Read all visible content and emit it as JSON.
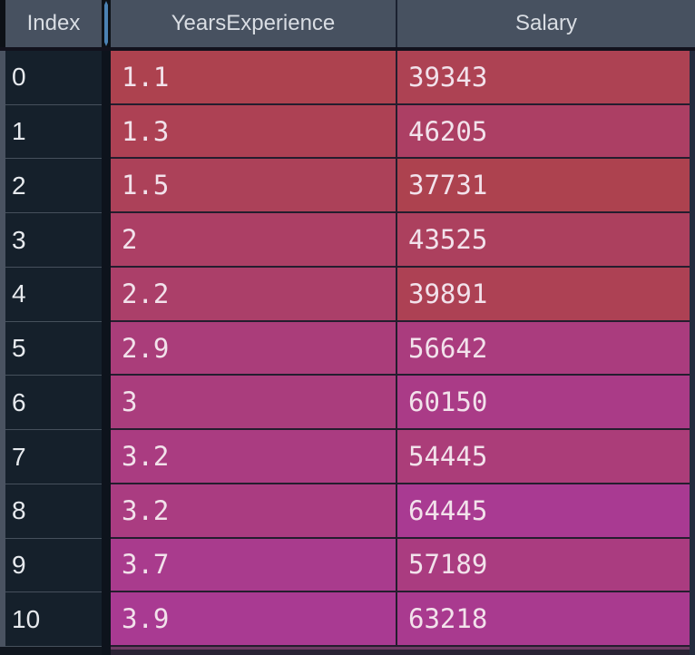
{
  "header": {
    "index_label": "Index",
    "columns": [
      {
        "label": "YearsExperience"
      },
      {
        "label": "Salary"
      }
    ]
  },
  "rows": [
    {
      "index": "0",
      "years": "1.1",
      "salary": "39343",
      "years_bg": "#ad424f",
      "salary_bg": "#ad4253"
    },
    {
      "index": "1",
      "years": "1.3",
      "salary": "46205",
      "years_bg": "#ad4154",
      "salary_bg": "#ac3f64"
    },
    {
      "index": "2",
      "years": "1.5",
      "salary": "37731",
      "years_bg": "#ac4159",
      "salary_bg": "#ad424f"
    },
    {
      "index": "3",
      "years": "2",
      "salary": "43525",
      "years_bg": "#ac3f65",
      "salary_bg": "#ac405e"
    },
    {
      "index": "4",
      "years": "2.2",
      "salary": "39891",
      "years_bg": "#ab3f69",
      "salary_bg": "#ad4154"
    },
    {
      "index": "5",
      "years": "2.9",
      "salary": "56642",
      "years_bg": "#aa3d7a",
      "salary_bg": "#aa3c7e"
    },
    {
      "index": "6",
      "years": "3",
      "salary": "60150",
      "years_bg": "#aa3d7d",
      "salary_bg": "#aa3b87"
    },
    {
      "index": "7",
      "years": "3.2",
      "salary": "54445",
      "years_bg": "#aa3c81",
      "salary_bg": "#ab3d79"
    },
    {
      "index": "8",
      "years": "3.2",
      "salary": "64445",
      "years_bg": "#aa3c81",
      "salary_bg": "#a93a92"
    },
    {
      "index": "9",
      "years": "3.7",
      "salary": "57189",
      "years_bg": "#a93b8d",
      "salary_bg": "#aa3c80"
    },
    {
      "index": "10",
      "years": "3.9",
      "salary": "63218",
      "years_bg": "#a93a92",
      "salary_bg": "#a93a8f"
    }
  ],
  "colors": {
    "header_bg": "#475160",
    "index_cell_bg": "#15202b",
    "divider_accent": "#4b82b4",
    "heat_low_red": "#ad424f",
    "heat_high_magenta": "#a93a92",
    "bottom_sliver": "#6e3c64"
  }
}
